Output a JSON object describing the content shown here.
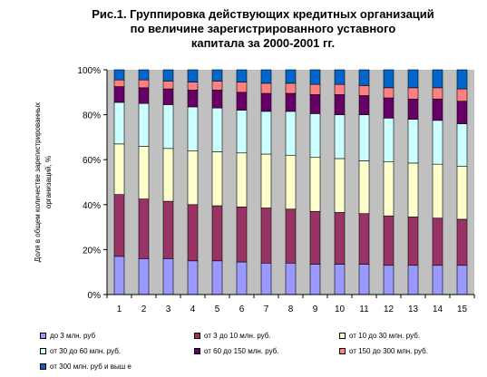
{
  "chart_data": {
    "type": "bar",
    "stacked": "percent",
    "title_lines": [
      "Рис.1. Группировка действующих кредитных организаций",
      "по величине зарегистрированного уставного",
      "капитала за 2000-2001 гг."
    ],
    "ylabel_lines": [
      "Доля в общем количестве зарегистрированных",
      "организаций, %"
    ],
    "xlabel": "",
    "ylim": [
      0,
      100
    ],
    "yticks": [
      "0%",
      "20%",
      "40%",
      "60%",
      "80%",
      "100%"
    ],
    "grid": false,
    "legend_position": "bottom",
    "categories": [
      "1",
      "2",
      "3",
      "4",
      "5",
      "6",
      "7",
      "8",
      "9",
      "10",
      "11",
      "12",
      "13",
      "14",
      "15"
    ],
    "series": [
      {
        "name": "до 3 млн. руб",
        "color": "#9999FF",
        "values": [
          17,
          16,
          16,
          15,
          15,
          14.5,
          14,
          14,
          13.5,
          13.5,
          13.5,
          13,
          13,
          13,
          13
        ]
      },
      {
        "name": "от 3 до 10 млн. руб.",
        "color": "#993366",
        "values": [
          27.5,
          26.5,
          25.5,
          25,
          24.5,
          24.5,
          24.5,
          24,
          23.5,
          23,
          22.5,
          22,
          21.5,
          21,
          20.5
        ]
      },
      {
        "name": "от 10 до 30 млн. руб.",
        "color": "#FFFFCC",
        "values": [
          22.5,
          23.5,
          23.5,
          24,
          24,
          24,
          24,
          24,
          24,
          24,
          23.5,
          24,
          24,
          24,
          23.5
        ]
      },
      {
        "name": "от 30 до 60 млн. руб.",
        "color": "#CCFFFF",
        "values": [
          18.5,
          19,
          19.5,
          19.5,
          19.5,
          19,
          19,
          19.5,
          19.5,
          19.5,
          20.5,
          19.5,
          19.5,
          19.5,
          19
        ]
      },
      {
        "name": "от 60 до 150 млн. руб.",
        "color": "#660066",
        "values": [
          7,
          7,
          7,
          7.5,
          8,
          8,
          8,
          8,
          8.5,
          9,
          8.5,
          9,
          9,
          9.5,
          10
        ]
      },
      {
        "name": "от 150 до 300 млн. руб.",
        "color": "#FF8080",
        "values": [
          3,
          3.5,
          3.5,
          3.5,
          4,
          4.5,
          4.5,
          4.5,
          4.5,
          4.5,
          4.5,
          4.5,
          5,
          5,
          5.5
        ]
      },
      {
        "name": "от 300 млн. руб и выш е",
        "color": "#0066CC",
        "values": [
          4.5,
          4.5,
          5,
          5.5,
          5,
          5.5,
          6,
          6,
          6.5,
          6.5,
          7,
          8,
          8,
          8,
          8.5
        ]
      }
    ]
  }
}
